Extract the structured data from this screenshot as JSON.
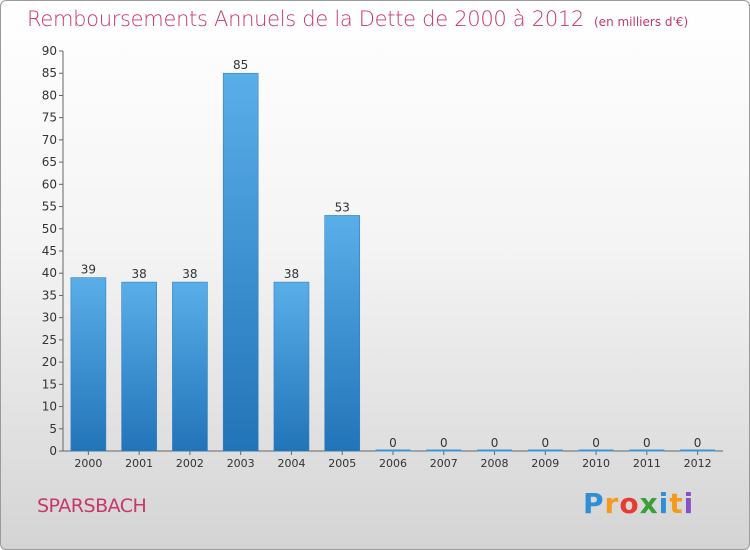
{
  "title": "Remboursements Annuels de la Dette de 2000 à 2012",
  "unit": "(en milliers d'€)",
  "commune": "SPARSBACH",
  "brand": {
    "letters": [
      "P",
      "r",
      "o",
      "x",
      "i",
      "t",
      "i"
    ],
    "colors": [
      "#2e8fd6",
      "#f39a1f",
      "#e63b2e",
      "#3a9e3a",
      "#2e8fd6",
      "#f39a1f",
      "#8a4fc4"
    ]
  },
  "chart_data": {
    "type": "bar",
    "categories": [
      "2000",
      "2001",
      "2002",
      "2003",
      "2004",
      "2005",
      "2006",
      "2007",
      "2008",
      "2009",
      "2010",
      "2011",
      "2012"
    ],
    "values": [
      39,
      38,
      38,
      85,
      38,
      53,
      0,
      0,
      0,
      0,
      0,
      0,
      0
    ],
    "ylim": [
      0,
      90
    ],
    "yticks": [
      0,
      5,
      10,
      15,
      20,
      25,
      30,
      35,
      40,
      45,
      50,
      55,
      60,
      65,
      70,
      75,
      80,
      85,
      90
    ],
    "grid": false,
    "bar_color": "#3d95d6"
  }
}
